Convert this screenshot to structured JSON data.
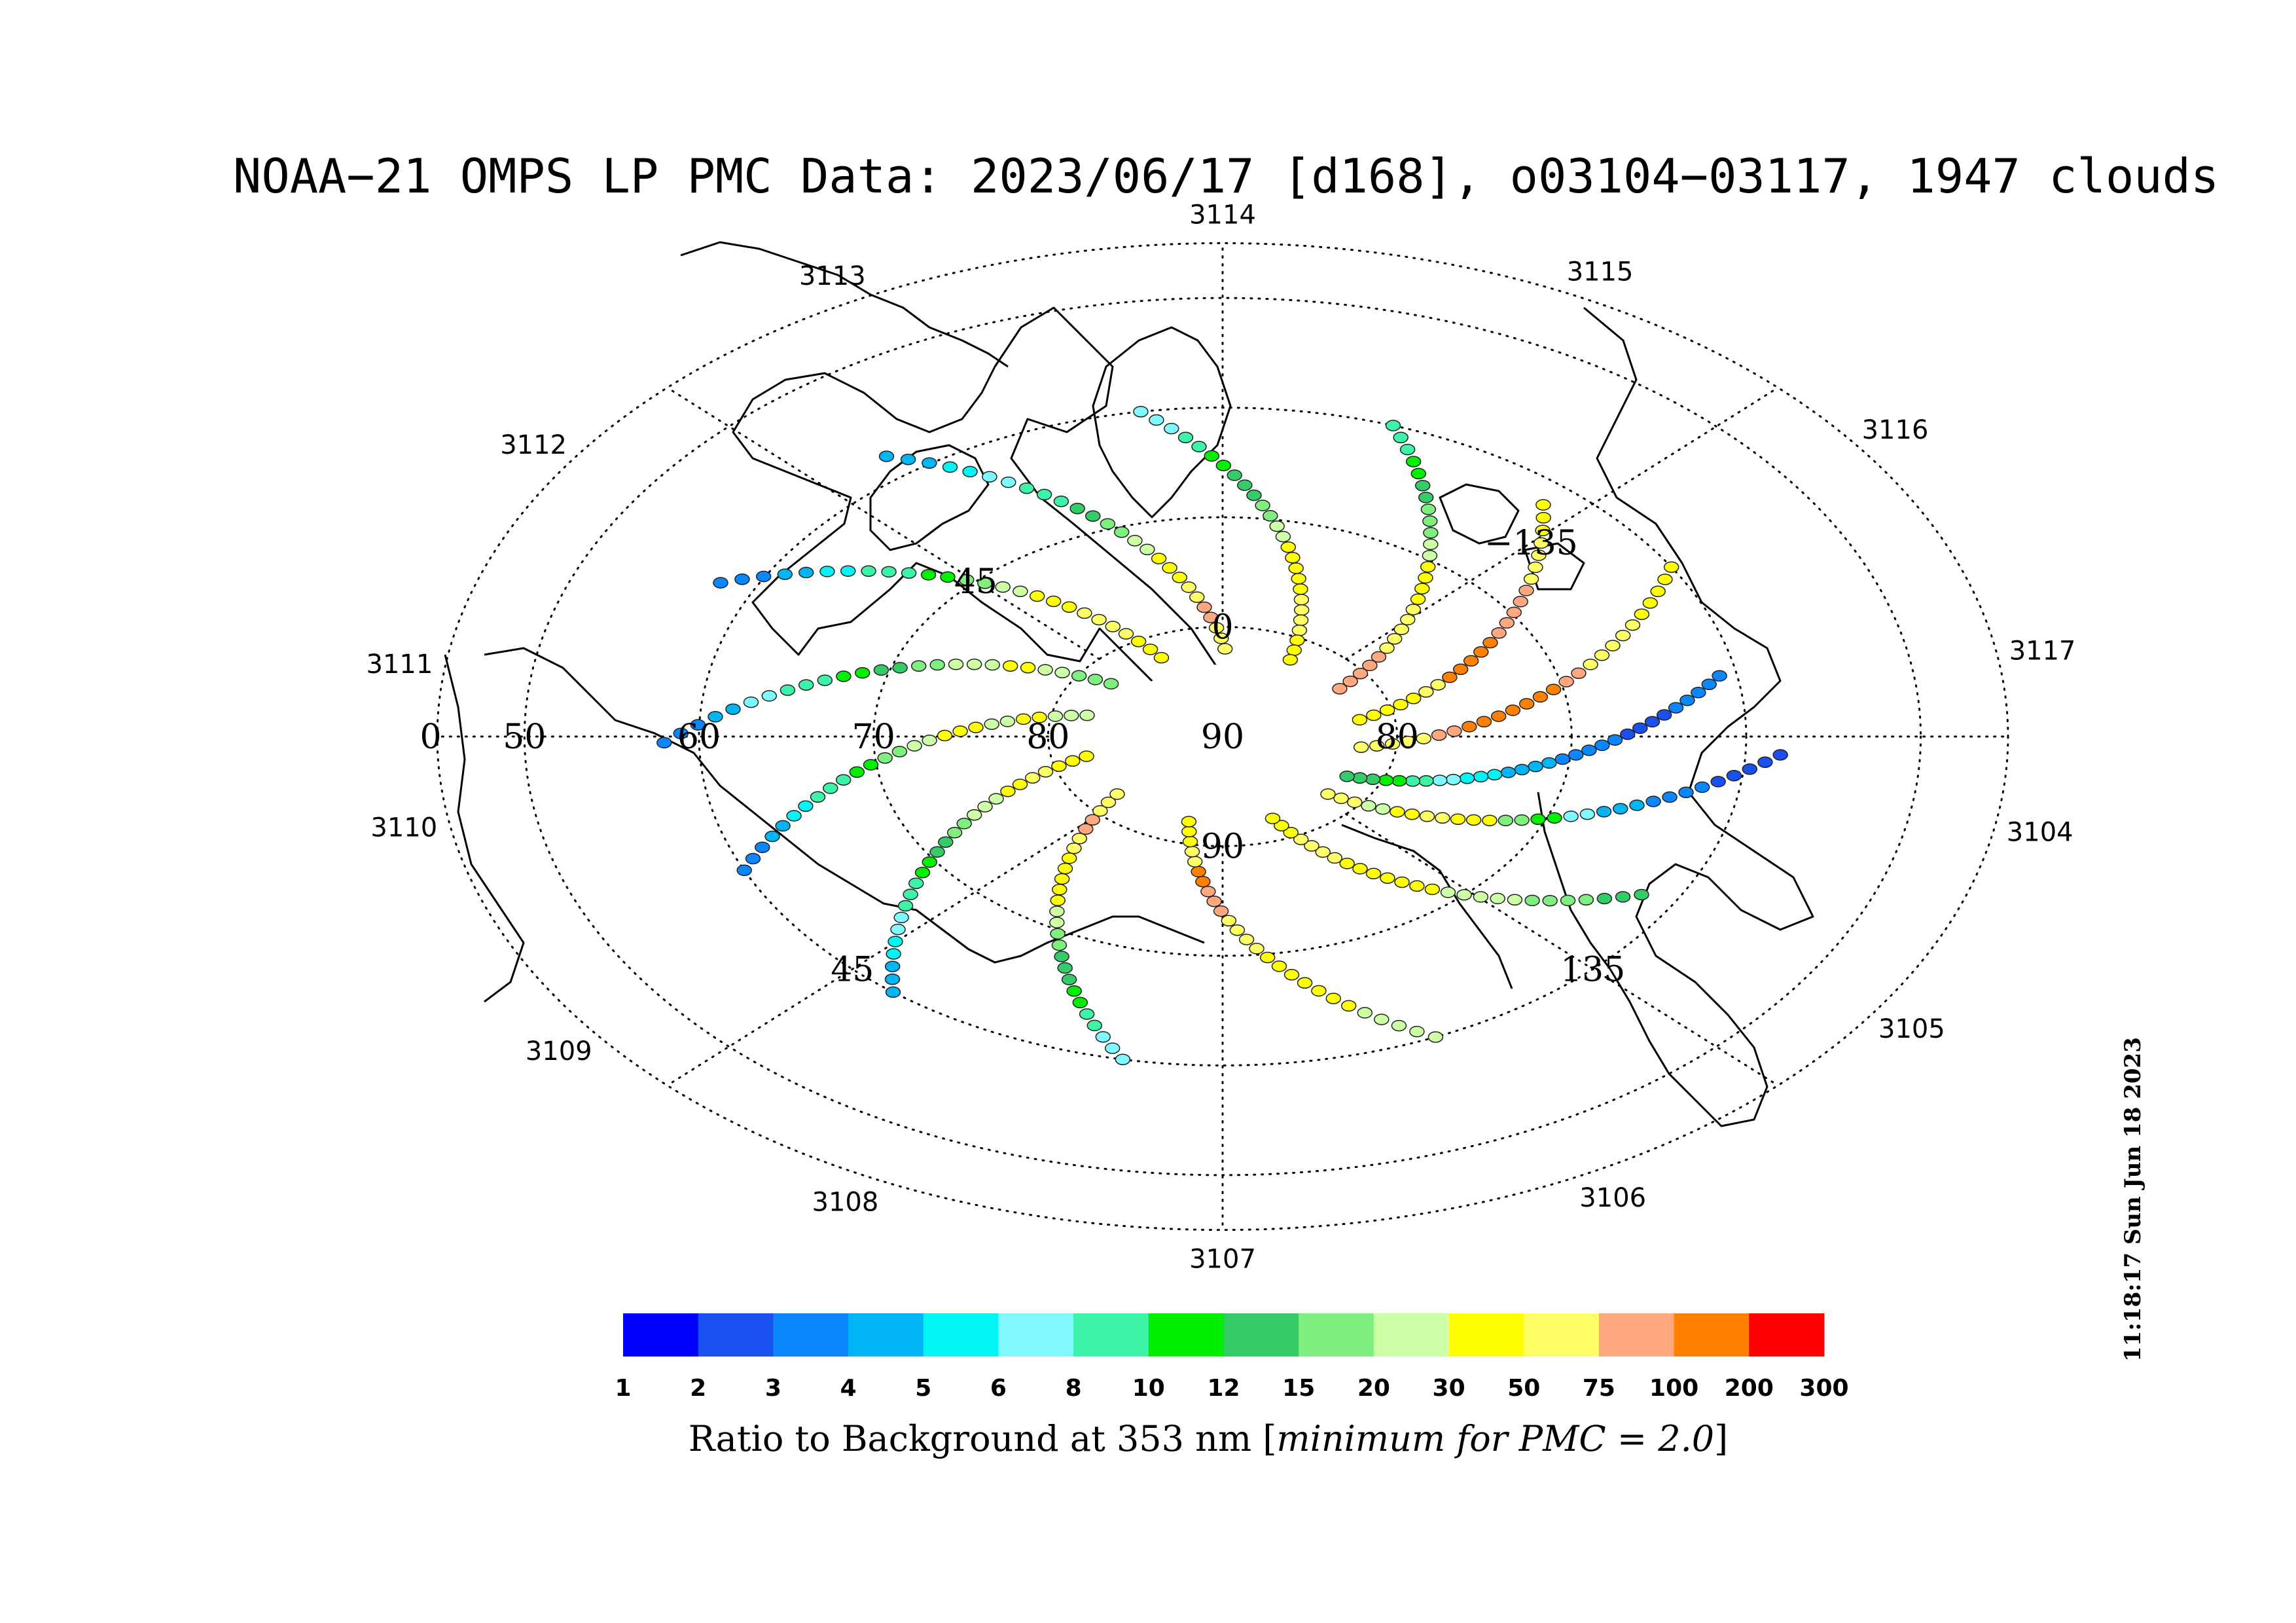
{
  "title": "NOAA−21 OMPS LP PMC Data: 2023/06/17 [d168], o03104−03117, 1947 clouds",
  "timestamp": "11:18:17 Sun Jun 18 2023",
  "orbit_labels": [
    {
      "text": "3104",
      "angle": 10.5
    },
    {
      "text": "3105",
      "angle": 34
    },
    {
      "text": "3106",
      "angle": 62
    },
    {
      "text": "3107",
      "angle": 90
    },
    {
      "text": "3108",
      "angle": 117
    },
    {
      "text": "3109",
      "angle": 143
    },
    {
      "text": "3110",
      "angle": 170
    },
    {
      "text": "3111",
      "angle": -172
    },
    {
      "text": "3112",
      "angle": -146
    },
    {
      "text": "3113",
      "angle": -118
    },
    {
      "text": "3114",
      "angle": -90
    },
    {
      "text": "3115",
      "angle": -63
    },
    {
      "text": "3116",
      "angle": -36
    },
    {
      "text": "3117",
      "angle": -9.5
    }
  ],
  "grid_labels": [
    {
      "text": "90",
      "place": "pole"
    },
    {
      "text": "80",
      "place": "ring-80-left"
    },
    {
      "text": "70",
      "place": "ring-70-left"
    },
    {
      "text": "60",
      "place": "ring-60-left"
    },
    {
      "text": "50",
      "place": "ring-50-left"
    },
    {
      "text": "0",
      "place": "outer-left"
    },
    {
      "text": "80",
      "place": "ring-80-right"
    },
    {
      "text": "45",
      "place": "meridian-upper-left"
    },
    {
      "text": "45",
      "place": "meridian-lower-left"
    },
    {
      "text": "−135",
      "place": "meridian-upper-right"
    },
    {
      "text": "135",
      "place": "meridian-lower-right"
    },
    {
      "text": "0",
      "place": "meridian-top"
    },
    {
      "text": "90",
      "place": "meridian-bottom"
    }
  ],
  "colorbar": {
    "title": "Ratio to Background at 353 nm",
    "title_italic": "minimum for PMC = 2.0",
    "ticks": [
      "1",
      "2",
      "3",
      "4",
      "5",
      "6",
      "8",
      "10",
      "12",
      "15",
      "20",
      "30",
      "50",
      "75",
      "100",
      "200",
      "300"
    ],
    "colors": [
      "#0000ff",
      "#1a4ff0",
      "#0a87ff",
      "#00b5f5",
      "#00f5f5",
      "#7ff8ff",
      "#3cf3a8",
      "#00f000",
      "#33cc66",
      "#7ff07f",
      "#ccffa6",
      "#ffff00",
      "#ffff66",
      "#ffa87f",
      "#ff7f00",
      "#ff0000"
    ]
  },
  "chart_data": {
    "type": "scatter",
    "description_of_plot": "Polar stereographic map of PMC detections colored by ratio to background at 353 nm",
    "latitude_rings": [
      50,
      60,
      70,
      80
    ],
    "meridians_deg": [
      0,
      45,
      90,
      135,
      180,
      -135,
      -90,
      -45
    ],
    "value_scale": [
      1,
      2,
      3,
      4,
      5,
      6,
      8,
      10,
      12,
      15,
      20,
      30,
      50,
      75,
      100,
      200,
      300
    ],
    "tracks": [
      {
        "orbit": "3104",
        "lon": 98,
        "lat_start": 61,
        "lat_end": 82,
        "color_levels": [
          2,
          2,
          1,
          1,
          2,
          2,
          3,
          3,
          4,
          5,
          6,
          7,
          8
        ]
      },
      {
        "orbit": "3105",
        "lon": 112,
        "lat_start": 58,
        "lat_end": 82,
        "color_levels": [
          1,
          1,
          2,
          2,
          3,
          5,
          7,
          9,
          11,
          12,
          11,
          10,
          12
        ]
      },
      {
        "orbit": "3106",
        "lon": 140,
        "lat_start": 62,
        "lat_end": 82,
        "color_levels": [
          8,
          9,
          9,
          10,
          10,
          11,
          11,
          11,
          12,
          12,
          11
        ]
      },
      {
        "orbit": "3107",
        "lon": 175,
        "lat_start": 60,
        "lat_end": 82,
        "color_levels": [
          10,
          10,
          11,
          11,
          11,
          12,
          12,
          13,
          14,
          12,
          11
        ]
      },
      {
        "orbit": "3108",
        "lon": -150,
        "lat_start": 60,
        "lat_end": 82,
        "color_levels": [
          5,
          6,
          7,
          8,
          9,
          10,
          11,
          11,
          12,
          13,
          12
        ]
      },
      {
        "orbit": "3109",
        "lon": -122,
        "lat_start": 60,
        "lat_end": 82,
        "color_levels": [
          3,
          4,
          5,
          6,
          7,
          8,
          9,
          10,
          11,
          12,
          11
        ]
      },
      {
        "orbit": "3110",
        "lon": -95,
        "lat_start": 60,
        "lat_end": 82,
        "color_levels": [
          2,
          3,
          4,
          6,
          7,
          9,
          10,
          11,
          10,
          11,
          10
        ]
      },
      {
        "orbit": "3111",
        "lon": -72,
        "lat_start": 58,
        "lat_end": 82,
        "color_levels": [
          2,
          3,
          5,
          6,
          7,
          8,
          9,
          10,
          11,
          10,
          9
        ]
      },
      {
        "orbit": "3112",
        "lon": -45,
        "lat_start": 58,
        "lat_end": 82,
        "color_levels": [
          2,
          3,
          4,
          6,
          7,
          9,
          10,
          11,
          12,
          12,
          11
        ]
      },
      {
        "orbit": "3113",
        "lon": -18,
        "lat_start": 58,
        "lat_end": 82,
        "color_levels": [
          3,
          4,
          5,
          6,
          8,
          9,
          10,
          11,
          12,
          13,
          12
        ]
      },
      {
        "orbit": "3114",
        "lon": 10,
        "lat_start": 60,
        "lat_end": 82,
        "color_levels": [
          5,
          6,
          7,
          8,
          9,
          10,
          11,
          11,
          12,
          12,
          11
        ]
      },
      {
        "orbit": "3115",
        "lon": 38,
        "lat_start": 60,
        "lat_end": 82,
        "color_levels": [
          6,
          7,
          8,
          9,
          10,
          11,
          11,
          12,
          12,
          13,
          13
        ]
      },
      {
        "orbit": "3116",
        "lon": 60,
        "lat_start": 62,
        "lat_end": 82,
        "color_levels": [
          11,
          12,
          12,
          13,
          13,
          14,
          14,
          12,
          11,
          11
        ]
      },
      {
        "orbit": "3117",
        "lon": 78,
        "lat_start": 60,
        "lat_end": 82,
        "color_levels": [
          11,
          11,
          12,
          12,
          13,
          14,
          14,
          14,
          13,
          12,
          12
        ]
      }
    ]
  }
}
